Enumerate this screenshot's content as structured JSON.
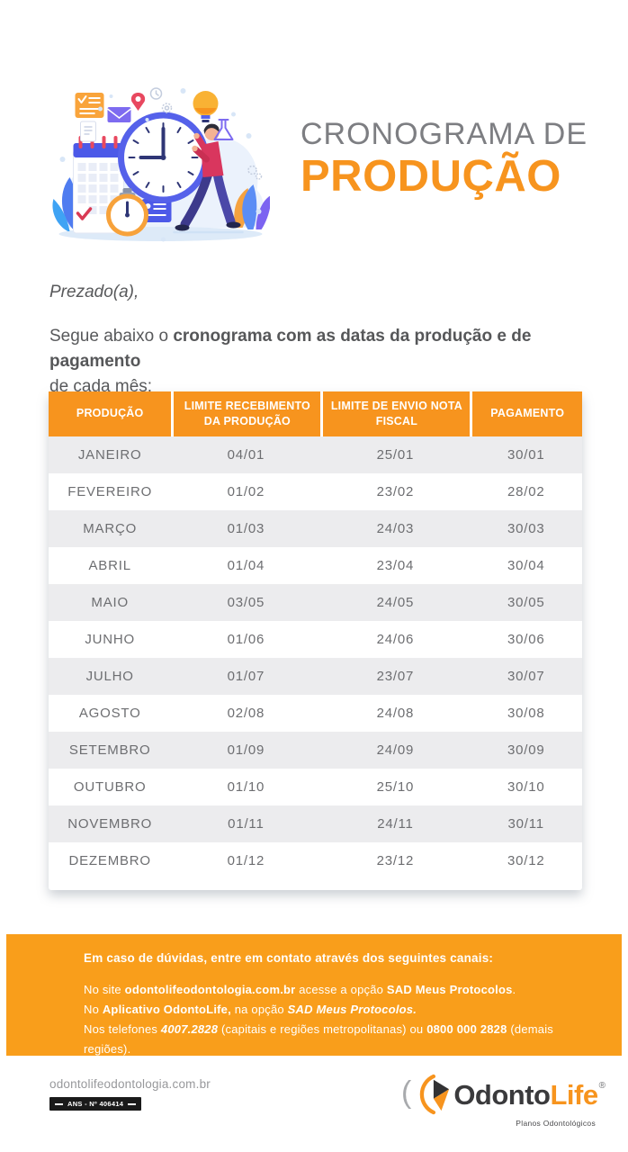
{
  "colors": {
    "orange_primary": "#f7941e",
    "orange_box": "#f99e1b",
    "title_gray": "#7d7e82",
    "body_text": "#58595b",
    "row_stripe": "#ececee",
    "cell_text": "#6d6e71"
  },
  "header": {
    "title_line1": "CRONOGRAMA DE",
    "title_line2": "PRODUÇÃO",
    "illustration": "clock-calendar-person-illustration"
  },
  "intro": {
    "salutation": "Prezado(a),",
    "lead_pre": "Segue abaixo o ",
    "lead_bold": "cronograma com as datas da produção e de pagamento",
    "lead_post": "de cada mês:"
  },
  "table": {
    "headers": [
      "PRODUÇÃO",
      "LIMITE RECEBIMENTO DA PRODUÇÃO",
      "LIMITE DE ENVIO NOTA FISCAL",
      "PAGAMENTO"
    ],
    "rows": [
      {
        "month": "JANEIRO",
        "limite_recebimento": "04/01",
        "limite_envio_nf": "25/01",
        "pagamento": "30/01"
      },
      {
        "month": "FEVEREIRO",
        "limite_recebimento": "01/02",
        "limite_envio_nf": "23/02",
        "pagamento": "28/02"
      },
      {
        "month": "MARÇO",
        "limite_recebimento": "01/03",
        "limite_envio_nf": "24/03",
        "pagamento": "30/03"
      },
      {
        "month": "ABRIL",
        "limite_recebimento": "01/04",
        "limite_envio_nf": "23/04",
        "pagamento": "30/04"
      },
      {
        "month": "MAIO",
        "limite_recebimento": "03/05",
        "limite_envio_nf": "24/05",
        "pagamento": "30/05"
      },
      {
        "month": "JUNHO",
        "limite_recebimento": "01/06",
        "limite_envio_nf": "24/06",
        "pagamento": "30/06"
      },
      {
        "month": "JULHO",
        "limite_recebimento": "01/07",
        "limite_envio_nf": "23/07",
        "pagamento": "30/07"
      },
      {
        "month": "AGOSTO",
        "limite_recebimento": "02/08",
        "limite_envio_nf": "24/08",
        "pagamento": "30/08"
      },
      {
        "month": "SETEMBRO",
        "limite_recebimento": "01/09",
        "limite_envio_nf": "24/09",
        "pagamento": "30/09"
      },
      {
        "month": "OUTUBRO",
        "limite_recebimento": "01/10",
        "limite_envio_nf": "25/10",
        "pagamento": "30/10"
      },
      {
        "month": "NOVEMBRO",
        "limite_recebimento": "01/11",
        "limite_envio_nf": "24/11",
        "pagamento": "30/11"
      },
      {
        "month": "DEZEMBRO",
        "limite_recebimento": "01/12",
        "limite_envio_nf": "23/12",
        "pagamento": "30/12"
      }
    ]
  },
  "contact": {
    "heading": "Em caso de dúvidas, entre em contato através dos seguintes canais:",
    "line1": {
      "pre": "No site ",
      "bold1": "odontolifeodontologia.com.br",
      "mid": " acesse a opção ",
      "bold2": "SAD Meus Protocolos",
      "post": "."
    },
    "line2": {
      "pre": "No ",
      "bold1": "Aplicativo OdontoLife,",
      "mid": " na opção ",
      "bold_italic": "SAD Meus Protocolos."
    },
    "line3": {
      "pre": "Nos telefones ",
      "bold_italic1": "4007.2828",
      "mid": " (capitais e regiões metropolitanas) ou ",
      "bold2": "0800 000 2828",
      "post": " (demais regiões)."
    }
  },
  "footer": {
    "website": "odontolifeodontologia.com.br",
    "ans_label": "ANS - Nº 406414",
    "logo": {
      "paren": "(",
      "wordmark_dark": "Odonto",
      "wordmark_orange": "Life",
      "registered": "®",
      "tagline": "Planos Odontológicos"
    }
  }
}
